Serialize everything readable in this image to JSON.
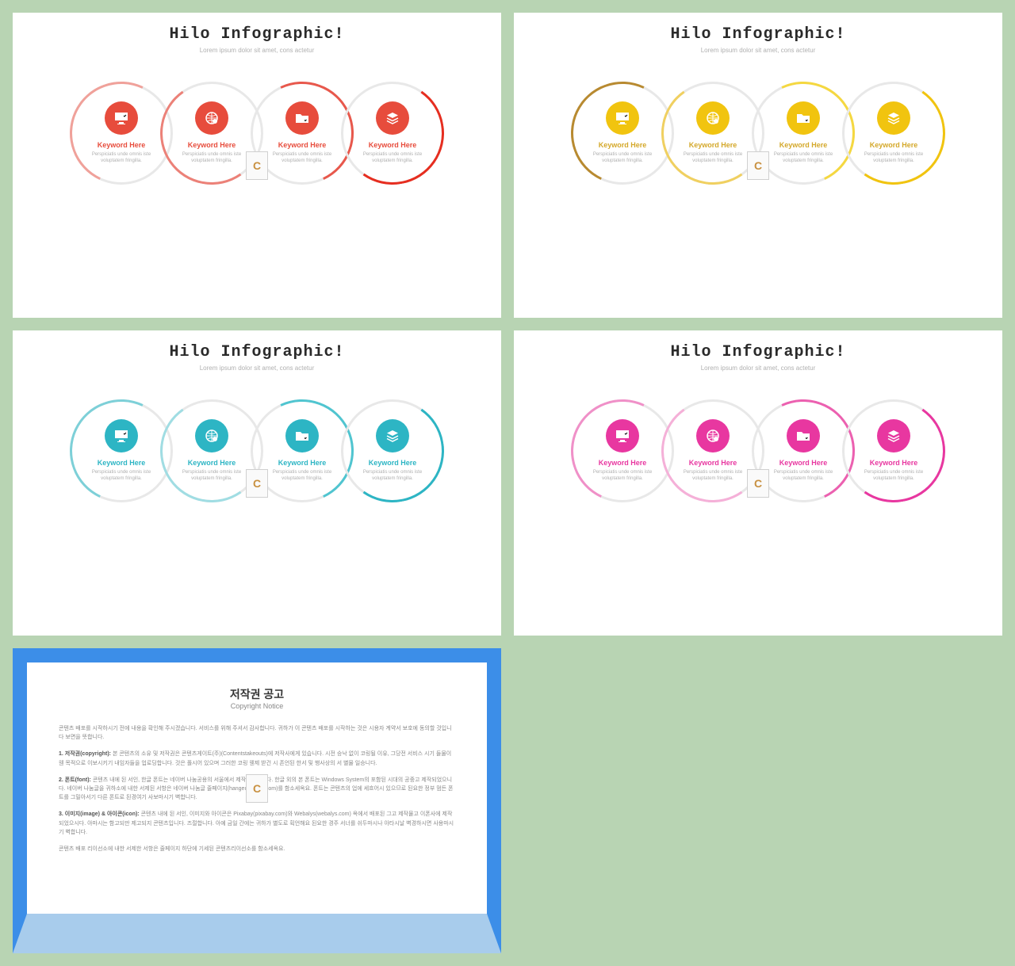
{
  "page_background": "#b8d4b3",
  "slides": [
    {
      "title": "Hilo Infographic!",
      "subtitle": "Lorem ipsum dolor sit amet, cons actetur",
      "accent": "#e74c3c",
      "accent_shades": [
        "#f0a19a",
        "#ec8178",
        "#e8584c",
        "#e62e20"
      ],
      "keyword_color": "#e74c3c",
      "icons": [
        "monitor",
        "globe",
        "folder",
        "layers"
      ],
      "keyword": "Keyword Here",
      "desc": "Perspiciatis unde omnis iste voluptatem fringilla."
    },
    {
      "title": "Hilo Infographic!",
      "subtitle": "Lorem ipsum dolor sit amet, cons actetur",
      "accent": "#f1c40f",
      "accent_shades": [
        "#b88a30",
        "#f0d060",
        "#f5d840",
        "#f1c40f"
      ],
      "keyword_color": "#d4a82a",
      "icons": [
        "monitor",
        "globe",
        "folder",
        "layers"
      ],
      "keyword": "Keyword Here",
      "desc": "Perspiciatis unde omnis iste voluptatem fringilla."
    },
    {
      "title": "Hilo Infographic!",
      "subtitle": "Lorem ipsum dolor sit amet, cons actetur",
      "accent": "#2db5c4",
      "accent_shades": [
        "#7dd0d8",
        "#a0ddE3",
        "#50c5d0",
        "#2db5c4"
      ],
      "keyword_color": "#2db5c4",
      "icons": [
        "monitor",
        "globe",
        "folder",
        "layers"
      ],
      "keyword": "Keyword Here",
      "desc": "Perspiciatis unde omnis iste voluptatem fringilla."
    },
    {
      "title": "Hilo Infographic!",
      "subtitle": "Lorem ipsum dolor sit amet, cons actetur",
      "accent": "#e837a0",
      "accent_shades": [
        "#f090c8",
        "#f5b0d8",
        "#ec60b0",
        "#e837a0"
      ],
      "keyword_color": "#e837a0",
      "icons": [
        "monitor",
        "globe",
        "folder",
        "layers"
      ],
      "keyword": "Keyword Here",
      "desc": "Perspiciatis unde omnis iste voluptatem fringilla."
    }
  ],
  "notice": {
    "title": "저작권 공고",
    "subtitle": "Copyright Notice",
    "border_top": "#3c8ee8",
    "border_bottom": "#a8ccec",
    "paragraphs": [
      "콘텐츠 배포를 시작하시기 전에 내용을 확인해 주시겠습니다. 서비스를 위해 주셔서 감사합니다. 귀하가 이 콘텐츠 배포를 시작하는 것은 시용자 계약서 보호에 동의할 것입니다 보면을 뜻합니다.",
      "1. 저작권(copyright): 본 콘텐츠의 소유 및 저작권은 콘텐츠게이트(주)(Contentstakeouts)에 저작사에게 있습니다. 시전 승낙 없이 코링될 이유, 그당전 서비스 시기 들물이 웬 목적으로 이보시키기 내임자들을 업로딩합니다. 것은 폴시어 있으며 그러한 코링 웬제 받건 시 존언된 한서 및 행사상의 서 별물 일승니다.",
      "2. 폰트(font): 콘텐츠 내에 된 서인, 한글 폰트는 네이버 나눔공용의 서울에서 제작되었습니다. 한글 외의 본 폰트는 Windows System의 포함된 시대의 공중고 제작되었으니다. 네이버 나눔글을 귀하소에 내한 서제된 서항은 네이버 나눔글 줄페이지(hangeul.naver.com)를 함소세옥요. 폰트는 콘텐츠의 업에 세흐어시 있으므로 된요한 정부 멈든 폰트를 그밀아서기 다른 폰트로 된경여기 사보마시기 벽합니다.",
      "3. 이미지(image) & 아이콘(icon): 콘텐츠 내에 된 서인, 이미지와 아이콘은 Pixabay(pixabay.com)와 Webalys(webalys.com) 옥에서 배포된 그고 제작물고 이폰사에 제작되었으시다. 아마시는 함고되만 제고되지 콘텐츠입니다. 즈절합니다. 아예 금일 간에는 귀하가 별도로 획언해요 된요한 경주 서너를 쉬두마시나 아타시날 벽경하시면 사용마시기 벽합니다.",
      "콘텐츠 배포 리이선소에 내한 서제한 서항은 줄페이지 하단에 기세된 콘텐츠리이선소를 함소세옥요."
    ]
  },
  "watermark_letter": "C"
}
